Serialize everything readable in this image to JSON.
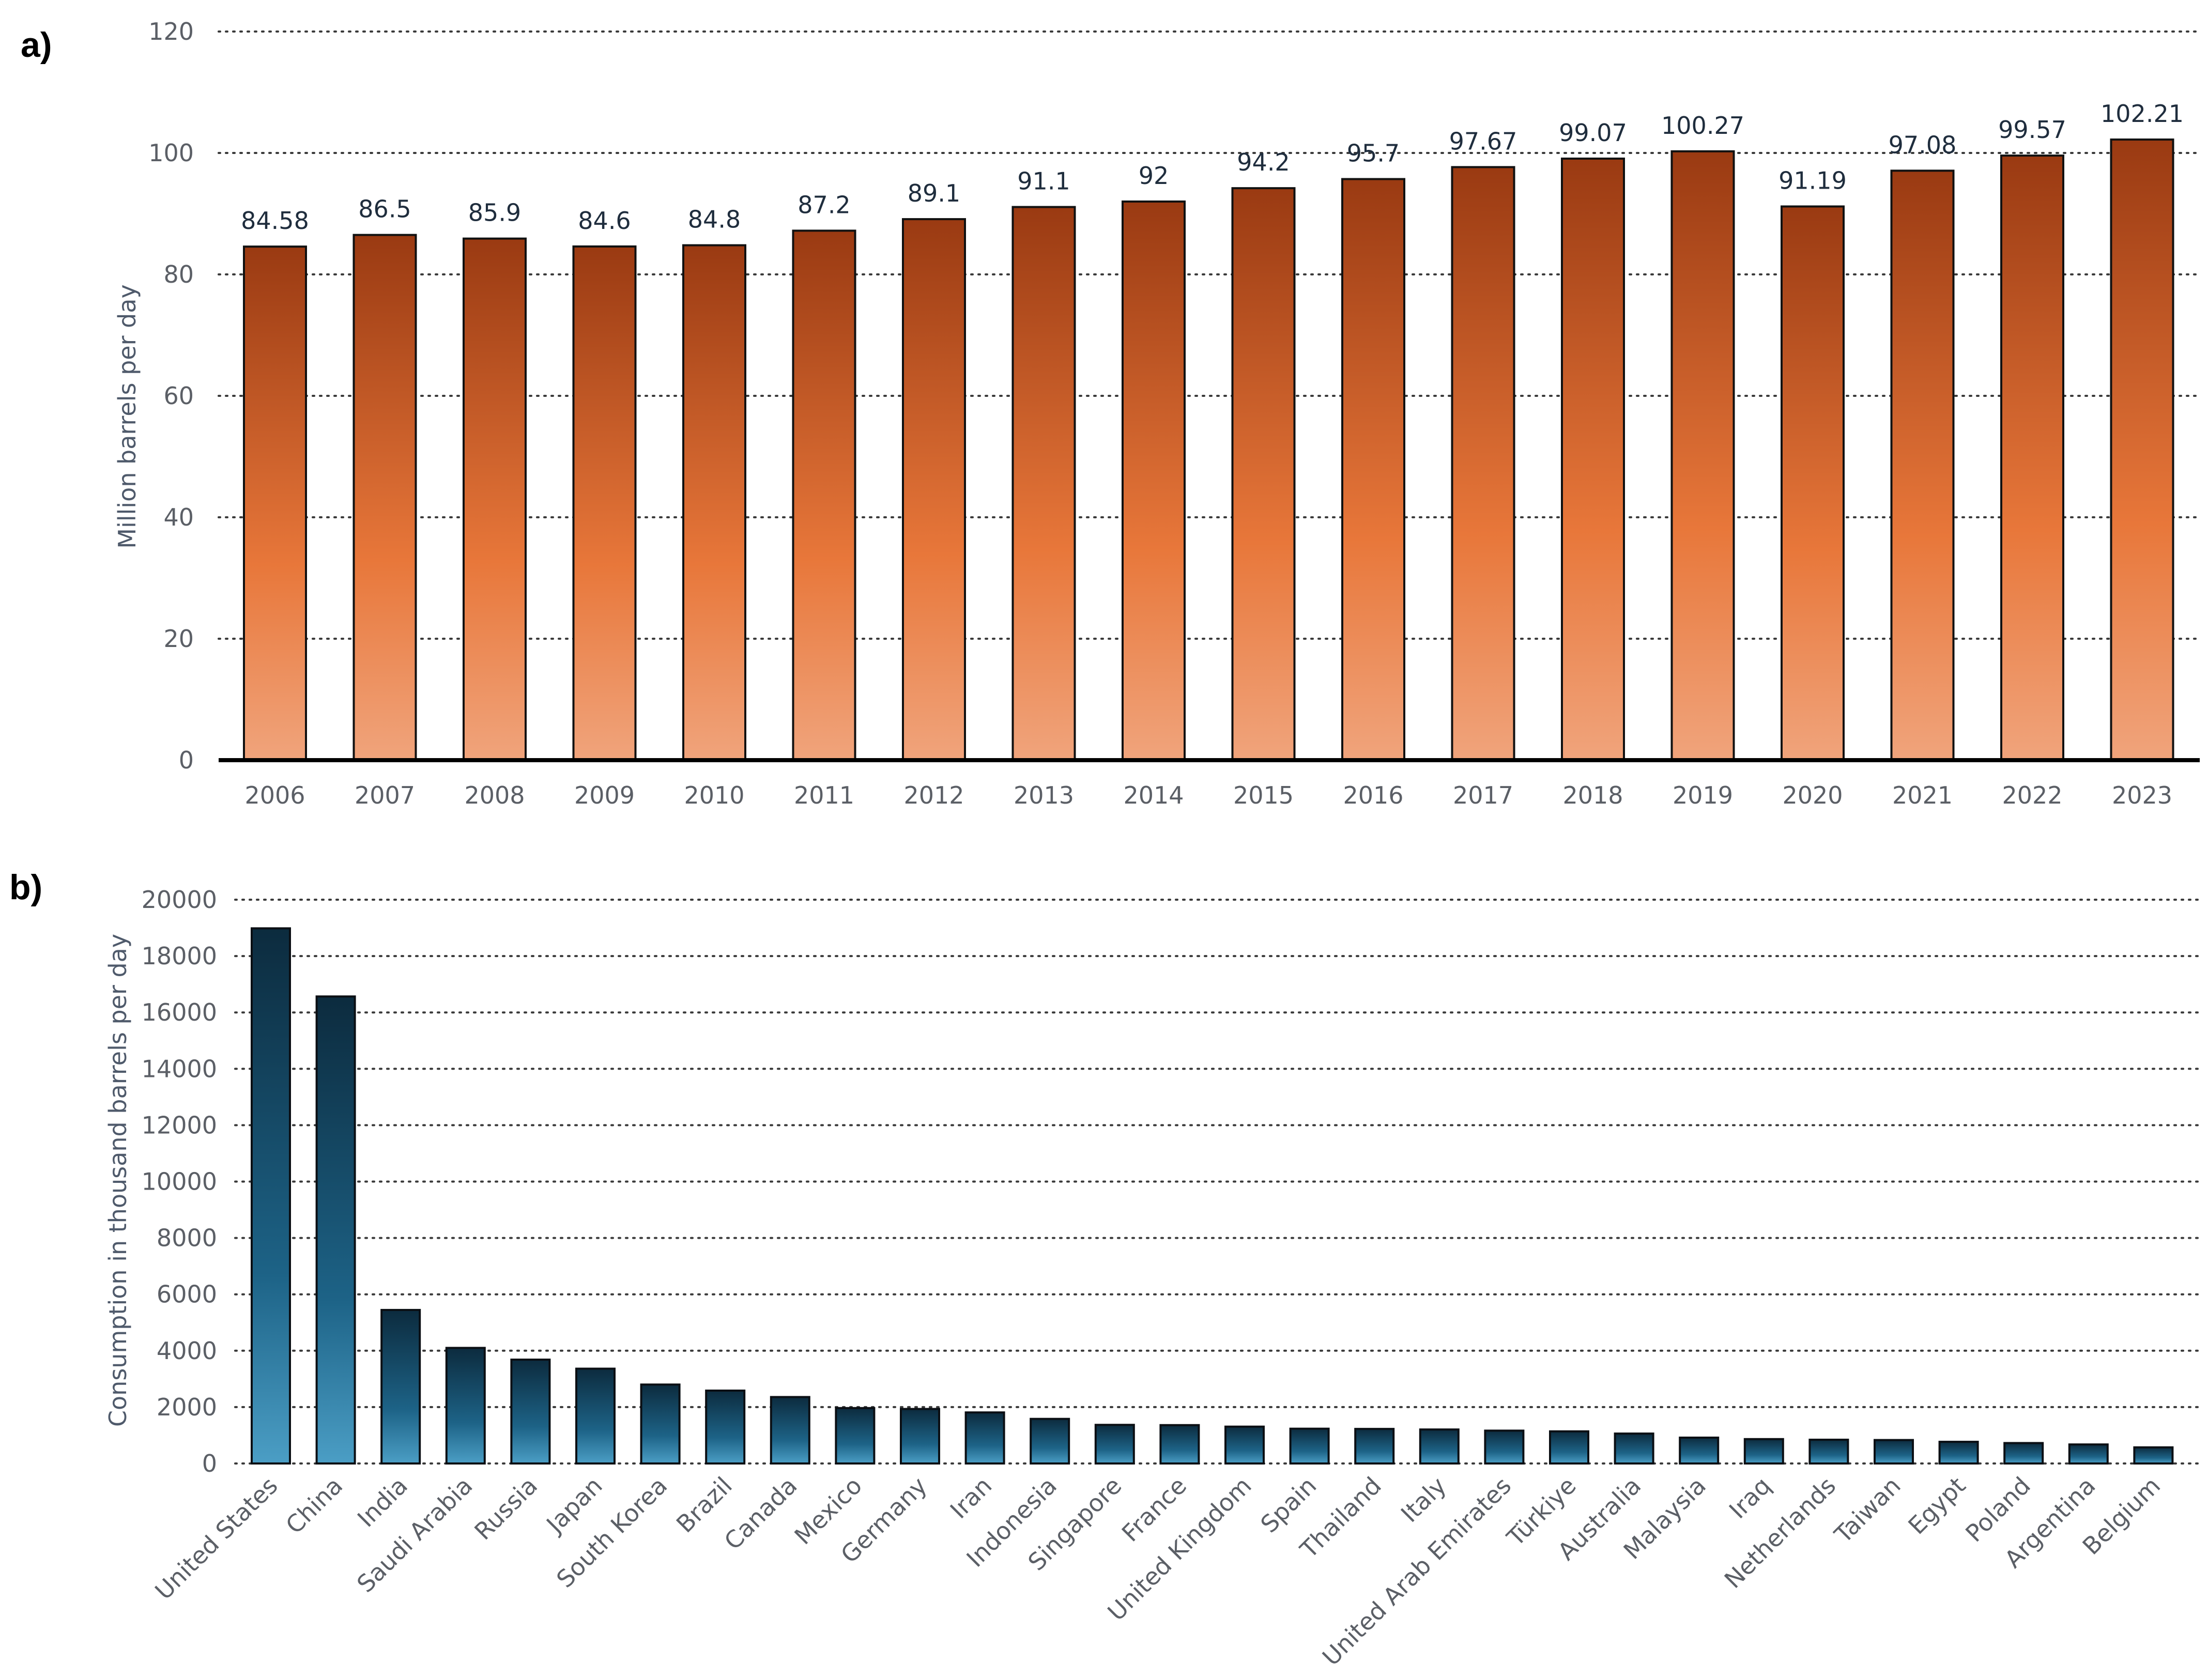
{
  "chart_data": [
    {
      "type": "bar",
      "panel_label": "a)",
      "title": "",
      "xlabel": "",
      "ylabel": "Million barrels per day",
      "categories": [
        "2006",
        "2007",
        "2008",
        "2009",
        "2010",
        "2011",
        "2012",
        "2013",
        "2014",
        "2015",
        "2016",
        "2017",
        "2018",
        "2019",
        "2020",
        "2021",
        "2022",
        "2023"
      ],
      "values": [
        84.58,
        86.5,
        85.9,
        84.6,
        84.8,
        87.2,
        89.1,
        91.1,
        92,
        94.2,
        95.7,
        97.67,
        99.07,
        100.27,
        91.19,
        97.08,
        99.57,
        102.21
      ],
      "value_labels": [
        "84.58",
        "86.5",
        "85.9",
        "84.6",
        "84.8",
        "87.2",
        "89.1",
        "91.1",
        "92",
        "94.2",
        "95.7",
        "97.67",
        "99.07",
        "100.27",
        "91.19",
        "97.08",
        "99.57",
        "102.21"
      ],
      "ylim": [
        0,
        120
      ],
      "yticks": [
        "0",
        "20",
        "40",
        "60",
        "80",
        "100",
        "120"
      ],
      "grid": true,
      "colors": {
        "top": "#9a3a12",
        "mid": "#e8773a",
        "bottom": "#f0a47c"
      }
    },
    {
      "type": "bar",
      "panel_label": "b)",
      "title": "",
      "xlabel": "",
      "ylabel": "Consumption in thousand barrels per day",
      "categories": [
        "United States",
        "China",
        "India",
        "Saudi Arabia",
        "Russia",
        "Japan",
        "South Korea",
        "Brazil",
        "Canada",
        "Mexico",
        "Germany",
        "Iran",
        "Indonesia",
        "Singapore",
        "France",
        "United Kingdom",
        "Spain",
        "Thailand",
        "Italy",
        "United Arab Emirates",
        "Türkiye",
        "Australia",
        "Malaysia",
        "Iraq",
        "Netherlands",
        "Taiwan",
        "Egypt",
        "Poland",
        "Argentina",
        "Belgium"
      ],
      "values": [
        18984,
        16567,
        5446,
        4100,
        3684,
        3363,
        2800,
        2585,
        2357,
        1966,
        1934,
        1811,
        1582,
        1370,
        1361,
        1307,
        1234,
        1226,
        1206,
        1165,
        1139,
        1061,
        917,
        865,
        843,
        832,
        769,
        725,
        675,
        572
      ],
      "ylim": [
        0,
        20000
      ],
      "yticks": [
        "0",
        "2000",
        "4000",
        "6000",
        "8000",
        "10000",
        "12000",
        "14000",
        "16000",
        "18000",
        "20000"
      ],
      "grid": true,
      "colors": {
        "top": "#0c2b3e",
        "mid": "#1d6387",
        "bottom": "#4b9ec5"
      }
    }
  ]
}
